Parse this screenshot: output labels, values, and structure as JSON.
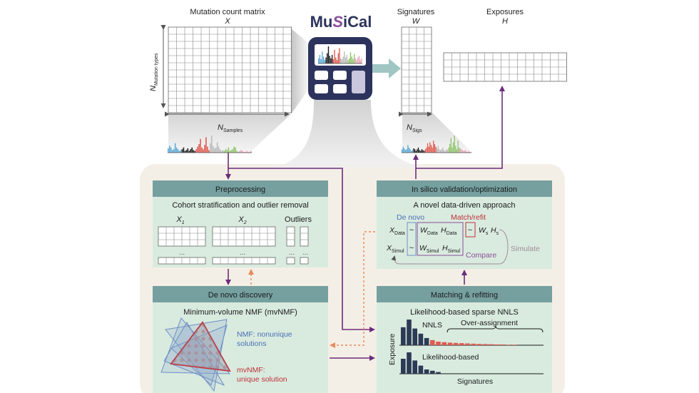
{
  "app": {
    "logo_text_left": "Mu",
    "logo_text_right": "iCal",
    "logo_mark": "S"
  },
  "colors": {
    "panel_bg": "#f4efe6",
    "box_fill": "#d9ebdf",
    "box_header": "#76a0a0",
    "purple": "#6b2c7a",
    "orange_dashed": "#e58a5c",
    "navy": "#2d3a56",
    "red_bar": "#e05a50",
    "blue_label": "#4a6fb5",
    "red_label": "#c0303a",
    "match_label": "#c0303a",
    "simulate_label": "#a08c9a",
    "calc_body": "#2c335c",
    "arrow_teal": "#9fc6c3"
  },
  "top": {
    "matrix_title": "Mutation count matrix",
    "matrix_symbol": "X",
    "n_mut_main": "N",
    "n_mut_sub": "Mutation types",
    "n_samples_main": "N",
    "n_samples_sub": "Samples",
    "signatures_title": "Signatures",
    "signatures_symbol": "W",
    "exposures_title": "Exposures",
    "exposures_symbol": "H",
    "n_sigs_main": "N",
    "n_sigs_sub": "Sigs"
  },
  "preprocessing": {
    "header": "Preprocessing",
    "subtitle": "Cohort stratification and outlier removal",
    "x1_main": "X",
    "x1_sub": "1",
    "x2_main": "X",
    "x2_sub": "2",
    "outliers": "Outliers",
    "dots": "..."
  },
  "denovo": {
    "header": "De novo discovery",
    "subtitle": "Minimum-volume NMF (mvNMF)",
    "nmf_line1": "NMF: nonunique",
    "nmf_line2": "solutions",
    "mvnmf_line1": "mvNMF:",
    "mvnmf_line2": "unique solution"
  },
  "insilico": {
    "header": "In silico validation/optimization",
    "subtitle": "A novel data-driven approach",
    "denovo_label": "De novo",
    "match_label": "Match/refit",
    "x_data_main": "X",
    "x_data_sub": "Data",
    "x_simul_main": "X",
    "x_simul_sub": "Simul",
    "tilde": "~",
    "w_data_main": "W",
    "w_data_sub": "Data",
    "h_data_main": "H",
    "h_data_sub": "Data",
    "w_simul_main": "W",
    "w_simul_sub": "Simul",
    "h_simul_main": "H",
    "h_simul_sub": "Simul",
    "ws_main": "W",
    "ws_sub": "s",
    "hs_main": "H",
    "hs_sub": "s",
    "compare": "Compare",
    "simulate": "Simulate"
  },
  "matching": {
    "header": "Matching & refitting",
    "subtitle": "Likelihood-based sparse NNLS",
    "nnls": "NNLS",
    "over_assignment": "Over-assignment",
    "likelihood": "Likelihood-based",
    "y_label": "Exposure",
    "x_label": "Signatures",
    "nnls_bars": [
      0.7,
      1.0,
      0.65,
      0.45,
      0.28,
      0.2,
      0.14,
      0.12,
      0.1,
      0.09,
      0.08,
      0.07,
      0.06,
      0.05,
      0.045,
      0.04,
      0.03,
      0.03,
      0.02,
      0.02
    ],
    "nnls_navy_count": 5,
    "likelihood_bars": [
      0.7,
      1.0,
      0.62,
      0.38,
      0.2,
      0.14,
      0.08
    ]
  },
  "spectra": {
    "spectrum1": [
      0.25,
      0.4,
      0.3,
      0.15,
      0.2,
      0.55,
      0.3,
      0.2,
      0.1,
      0.15,
      0.2,
      0.3,
      0.1,
      0.15,
      0.25,
      0.1,
      0.2,
      0.3,
      0.15,
      0.1,
      0.2,
      0.35,
      0.5,
      0.8,
      0.3,
      0.2,
      0.45,
      0.9,
      0.35,
      0.15,
      0.55,
      1.0,
      0.4,
      0.25,
      0.3,
      0.6,
      0.35,
      0.2,
      0.1,
      0.15,
      0.1,
      0.2,
      0.15,
      0.3,
      0.1,
      0.15,
      0.2,
      0.35,
      0.3,
      0.1,
      0.05,
      0.1,
      0.15,
      0.1,
      0.05,
      0.05,
      0.1,
      0.05,
      0.05,
      0.1
    ],
    "spectrum2": [
      0.2,
      0.35,
      0.25,
      0.15,
      0.2,
      0.45,
      0.3,
      0.2,
      0.1,
      0.15,
      0.25,
      0.2,
      0.1,
      0.2,
      0.3,
      0.15,
      0.1,
      0.2,
      0.15,
      0.1,
      0.2,
      0.3,
      0.55,
      0.35,
      0.6,
      0.45,
      0.3,
      0.7,
      0.5,
      0.35,
      0.25,
      0.4,
      0.2,
      0.15,
      0.2,
      0.3,
      0.15,
      0.1,
      0.2,
      0.15,
      0.3,
      0.5,
      0.85,
      0.3,
      0.6,
      1.0,
      0.4,
      0.2,
      0.7,
      0.3,
      0.25,
      0.2,
      0.15,
      0.1,
      0.15,
      0.1,
      0.05,
      0.1,
      0.05,
      0.05
    ],
    "calc_spectrum": [
      0.3,
      0.5,
      0.25,
      0.7,
      0.4,
      0.2,
      0.35,
      0.6,
      1.0,
      0.45,
      0.3,
      0.5,
      0.25,
      0.8,
      0.35,
      0.2,
      0.6,
      0.9,
      0.3,
      0.25,
      0.4,
      0.7,
      0.35,
      0.5,
      0.2,
      0.3,
      0.65,
      0.4,
      0.25,
      0.55,
      0.3,
      0.2,
      0.35,
      0.45,
      0.2,
      0.3
    ]
  }
}
